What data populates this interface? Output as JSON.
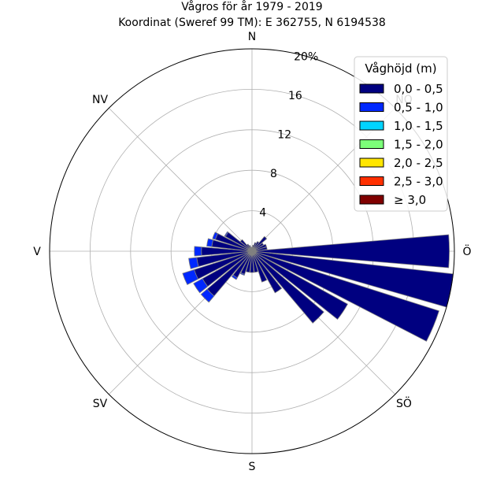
{
  "chart_data": {
    "type": "wind-rose",
    "title": "Vågros för år 1979 - 2019",
    "subtitle": "Koordinat (Sweref 99 TM): E 362755, N 6194538",
    "directions": [
      "N",
      "NÖ",
      "Ö",
      "SÖ",
      "S",
      "SV",
      "V",
      "NV"
    ],
    "radial_ticks": [
      "4",
      "8",
      "12",
      "16",
      "20%"
    ],
    "radial_max": 20,
    "grid": true,
    "legend": {
      "title": "Våghöjd (m)",
      "placement": "top-right",
      "labels": [
        "0,0 - 0,5",
        "0,5 - 1,0",
        "1,0 - 1,5",
        "1,5 - 2,0",
        "2,0 - 2,5",
        "2,5 - 3,0",
        "≥ 3,0"
      ],
      "colors": [
        "#000080",
        "#0028ff",
        "#00d4ff",
        "#7cff79",
        "#ffe600",
        "#ff3000",
        "#800000"
      ]
    },
    "sector_centers_deg": [
      0,
      11.25,
      22.5,
      33.75,
      45,
      56.25,
      67.5,
      78.75,
      90,
      101.25,
      112.5,
      123.75,
      135,
      146.25,
      157.5,
      168.75,
      180,
      191.25,
      202.5,
      213.75,
      225,
      236.25,
      247.5,
      258.75,
      270,
      281.25,
      292.5,
      303.75,
      315,
      326.25,
      337.5,
      348.75
    ],
    "series": [
      {
        "name": "0,0 - 0,5",
        "values": [
          0.4,
          0.6,
          0.9,
          1.1,
          1.9,
          1.3,
          1.5,
          1.5,
          19.5,
          20.0,
          19.4,
          10.8,
          9.3,
          4.7,
          3.2,
          2.1,
          2.1,
          2.1,
          2.4,
          3.0,
          5.8,
          5.6,
          6.0,
          5.5,
          5.0,
          4.0,
          3.8,
          3.0,
          1.5,
          0.8,
          0.6,
          0.4
        ]
      },
      {
        "name": "0,5 - 1,0",
        "values": [
          0,
          0,
          0,
          0,
          0,
          0,
          0,
          0,
          0,
          0,
          0,
          0,
          0,
          0,
          0,
          0,
          0,
          0,
          0.1,
          0.2,
          0.8,
          1.0,
          1.2,
          0.8,
          0.7,
          0.5,
          0.3,
          0.1,
          0,
          0,
          0,
          0
        ]
      }
    ]
  }
}
